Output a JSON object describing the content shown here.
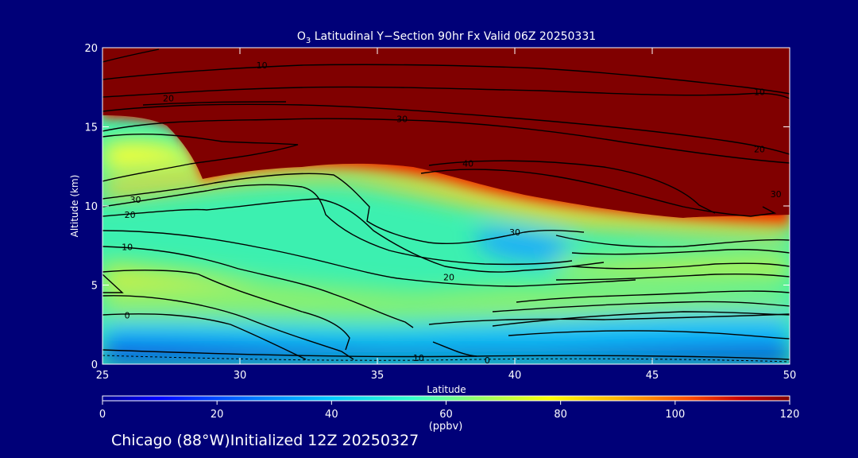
{
  "chart_data": {
    "type": "heatmap",
    "title_main": "O",
    "title_sub": "3",
    "title_rest": " Latitudinal Y−Section 90hr  Fx Valid 06Z 20250331",
    "xlabel": "Latitude",
    "ylabel": "Altitude (km)",
    "xlim": [
      25,
      50
    ],
    "ylim": [
      0,
      20
    ],
    "x_ticks": [
      25,
      30,
      35,
      40,
      45,
      50
    ],
    "y_ticks": [
      0,
      5,
      10,
      15,
      20
    ],
    "colorbar": {
      "ticks": [
        0,
        20,
        40,
        60,
        80,
        100,
        120
      ],
      "unit": "(ppbv)",
      "range": [
        0,
        120
      ],
      "colors": [
        "#000096",
        "#0000ff",
        "#0078ff",
        "#00c8ff",
        "#32ffcc",
        "#96ff64",
        "#ffff00",
        "#ffb400",
        "#ff5000",
        "#c80000",
        "#800000"
      ]
    },
    "grid": "off",
    "contour_labels": [
      {
        "text": "10",
        "x": 36.5,
        "y": 0.4
      },
      {
        "text": "0",
        "x": 39.0,
        "y": 0.25
      },
      {
        "text": "0",
        "x": 25.9,
        "y": 3.1
      },
      {
        "text": "10",
        "x": 25.9,
        "y": 7.4
      },
      {
        "text": "20",
        "x": 26.0,
        "y": 9.45
      },
      {
        "text": "30",
        "x": 26.2,
        "y": 10.4
      },
      {
        "text": "20",
        "x": 37.6,
        "y": 5.5
      },
      {
        "text": "30",
        "x": 40.0,
        "y": 8.35
      },
      {
        "text": "40",
        "x": 38.3,
        "y": 12.7
      },
      {
        "text": "30",
        "x": 35.9,
        "y": 15.5
      },
      {
        "text": "20",
        "x": 27.4,
        "y": 16.8
      },
      {
        "text": "10",
        "x": 30.8,
        "y": 18.9
      },
      {
        "text": "10",
        "x": 48.9,
        "y": 17.2
      },
      {
        "text": "20",
        "x": 48.9,
        "y": 13.6
      },
      {
        "text": "30",
        "x": 49.5,
        "y": 10.75
      }
    ]
  },
  "footer": "Chicago (88°W)Initialized 12Z 20250327"
}
